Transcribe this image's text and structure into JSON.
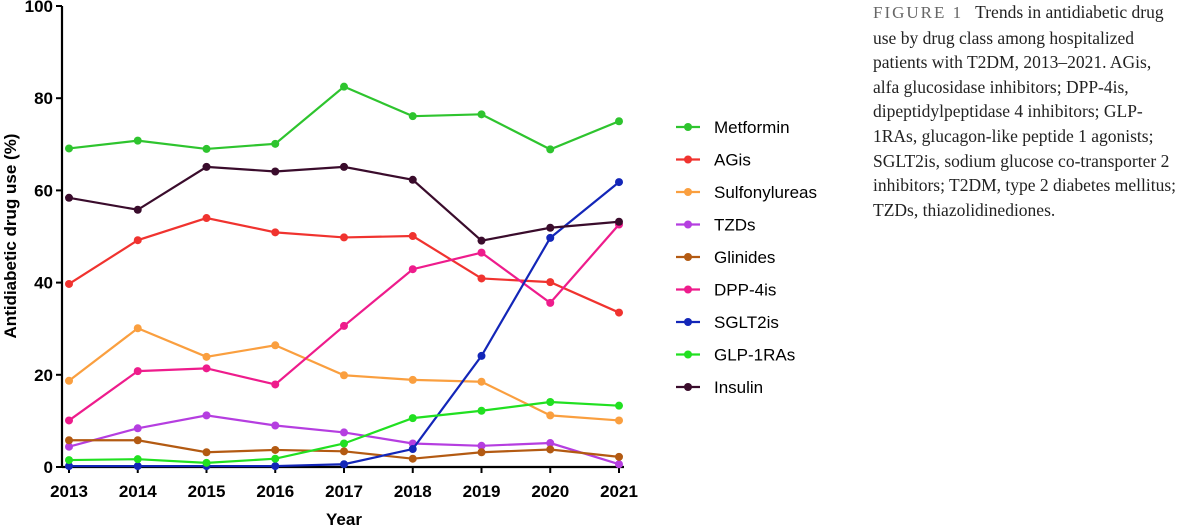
{
  "chart_data": {
    "type": "line",
    "xlabel": "Year",
    "ylabel": "Antidiabetic drug use (%)",
    "x": [
      "2013",
      "2014",
      "2015",
      "2016",
      "2017",
      "2018",
      "2019",
      "2020",
      "2021"
    ],
    "ylim": [
      0,
      100
    ],
    "yticks": [
      "0",
      "20",
      "40",
      "60",
      "80",
      "100"
    ],
    "grid": false,
    "legend_position": "right",
    "series": [
      {
        "name": "Metformin",
        "color": "#2ec42e",
        "values": [
          69.1,
          70.8,
          69.0,
          70.1,
          82.5,
          76.1,
          76.5,
          68.9,
          75.0
        ]
      },
      {
        "name": "AGis",
        "color": "#f0332f",
        "values": [
          39.7,
          49.2,
          54.0,
          50.9,
          49.8,
          50.1,
          40.9,
          40.1,
          33.5
        ]
      },
      {
        "name": "Sulfonylureas",
        "color": "#fa9f3f",
        "values": [
          18.7,
          30.1,
          23.9,
          26.4,
          19.9,
          18.9,
          18.5,
          11.2,
          10.1
        ]
      },
      {
        "name": "TZDs",
        "color": "#b53ee0",
        "values": [
          4.4,
          8.4,
          11.2,
          9.0,
          7.5,
          5.1,
          4.6,
          5.2,
          0.6
        ]
      },
      {
        "name": "Glinides",
        "color": "#b35a12",
        "values": [
          5.8,
          5.8,
          3.2,
          3.7,
          3.4,
          1.8,
          3.2,
          3.8,
          2.2
        ]
      },
      {
        "name": "DPP-4is",
        "color": "#ee1c8c",
        "values": [
          10.1,
          20.8,
          21.4,
          17.9,
          30.6,
          42.9,
          46.5,
          35.6,
          52.6
        ]
      },
      {
        "name": "SGLT2is",
        "color": "#1326b8",
        "values": [
          0.2,
          0.2,
          0.2,
          0.2,
          0.6,
          3.9,
          24.1,
          49.7,
          61.8
        ]
      },
      {
        "name": "GLP-1RAs",
        "color": "#21e021",
        "values": [
          1.5,
          1.7,
          0.9,
          1.8,
          5.1,
          10.6,
          12.2,
          14.1,
          13.3
        ]
      },
      {
        "name": "Insulin",
        "color": "#3a0c2c",
        "values": [
          58.4,
          55.8,
          65.1,
          64.1,
          65.1,
          62.3,
          49.1,
          51.9,
          53.2
        ]
      }
    ]
  },
  "caption": {
    "figure_label": "FIGURE 1",
    "text": "Trends in antidiabetic drug use by drug class among hospitalized patients with T2DM, 2013–2021. AGis, alfa glucosidase inhibitors; DPP-4is, dipeptidylpeptidase 4 inhibitors; GLP-1RAs, glucagon-like peptide 1 agonists; SGLT2is, sodium glucose co-transporter 2 inhibitors; T2DM, type 2 diabetes mellitus; TZDs, thiazolidinediones."
  }
}
